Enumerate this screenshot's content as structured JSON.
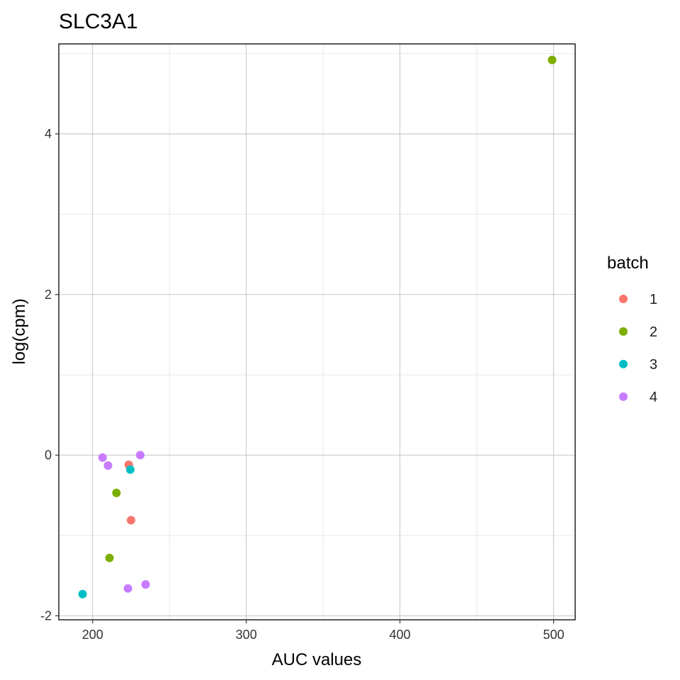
{
  "chart_data": {
    "type": "scatter",
    "title": "SLC3A1",
    "xlabel": "AUC values",
    "ylabel": "log(cpm)",
    "xlim": [
      178,
      514
    ],
    "ylim": [
      -2.05,
      5.12
    ],
    "xticks": [
      200,
      300,
      400,
      500
    ],
    "yticks": [
      -2,
      0,
      2,
      4
    ],
    "xtick_labels": [
      "200",
      "300",
      "400",
      "500"
    ],
    "ytick_labels": [
      "-2",
      "0",
      "2",
      "4"
    ],
    "grid": true,
    "legend": {
      "title": "batch",
      "position": "right"
    },
    "series": [
      {
        "name": "1",
        "color": "#F8766D",
        "points": [
          {
            "x": 223.5,
            "y": -0.12
          },
          {
            "x": 225.0,
            "y": -0.81
          }
        ]
      },
      {
        "name": "2",
        "color": "#7CAE00",
        "points": [
          {
            "x": 499.0,
            "y": 4.92
          },
          {
            "x": 215.5,
            "y": -0.47
          },
          {
            "x": 211.0,
            "y": -1.28
          }
        ]
      },
      {
        "name": "3",
        "color": "#00BFC4",
        "points": [
          {
            "x": 224.5,
            "y": -0.18
          },
          {
            "x": 193.5,
            "y": -1.73
          }
        ]
      },
      {
        "name": "4",
        "color": "#C77CFF",
        "points": [
          {
            "x": 206.5,
            "y": -0.03
          },
          {
            "x": 210.0,
            "y": -0.13
          },
          {
            "x": 231.0,
            "y": 0.0
          },
          {
            "x": 223.0,
            "y": -1.66
          },
          {
            "x": 234.5,
            "y": -1.61
          }
        ]
      }
    ]
  }
}
